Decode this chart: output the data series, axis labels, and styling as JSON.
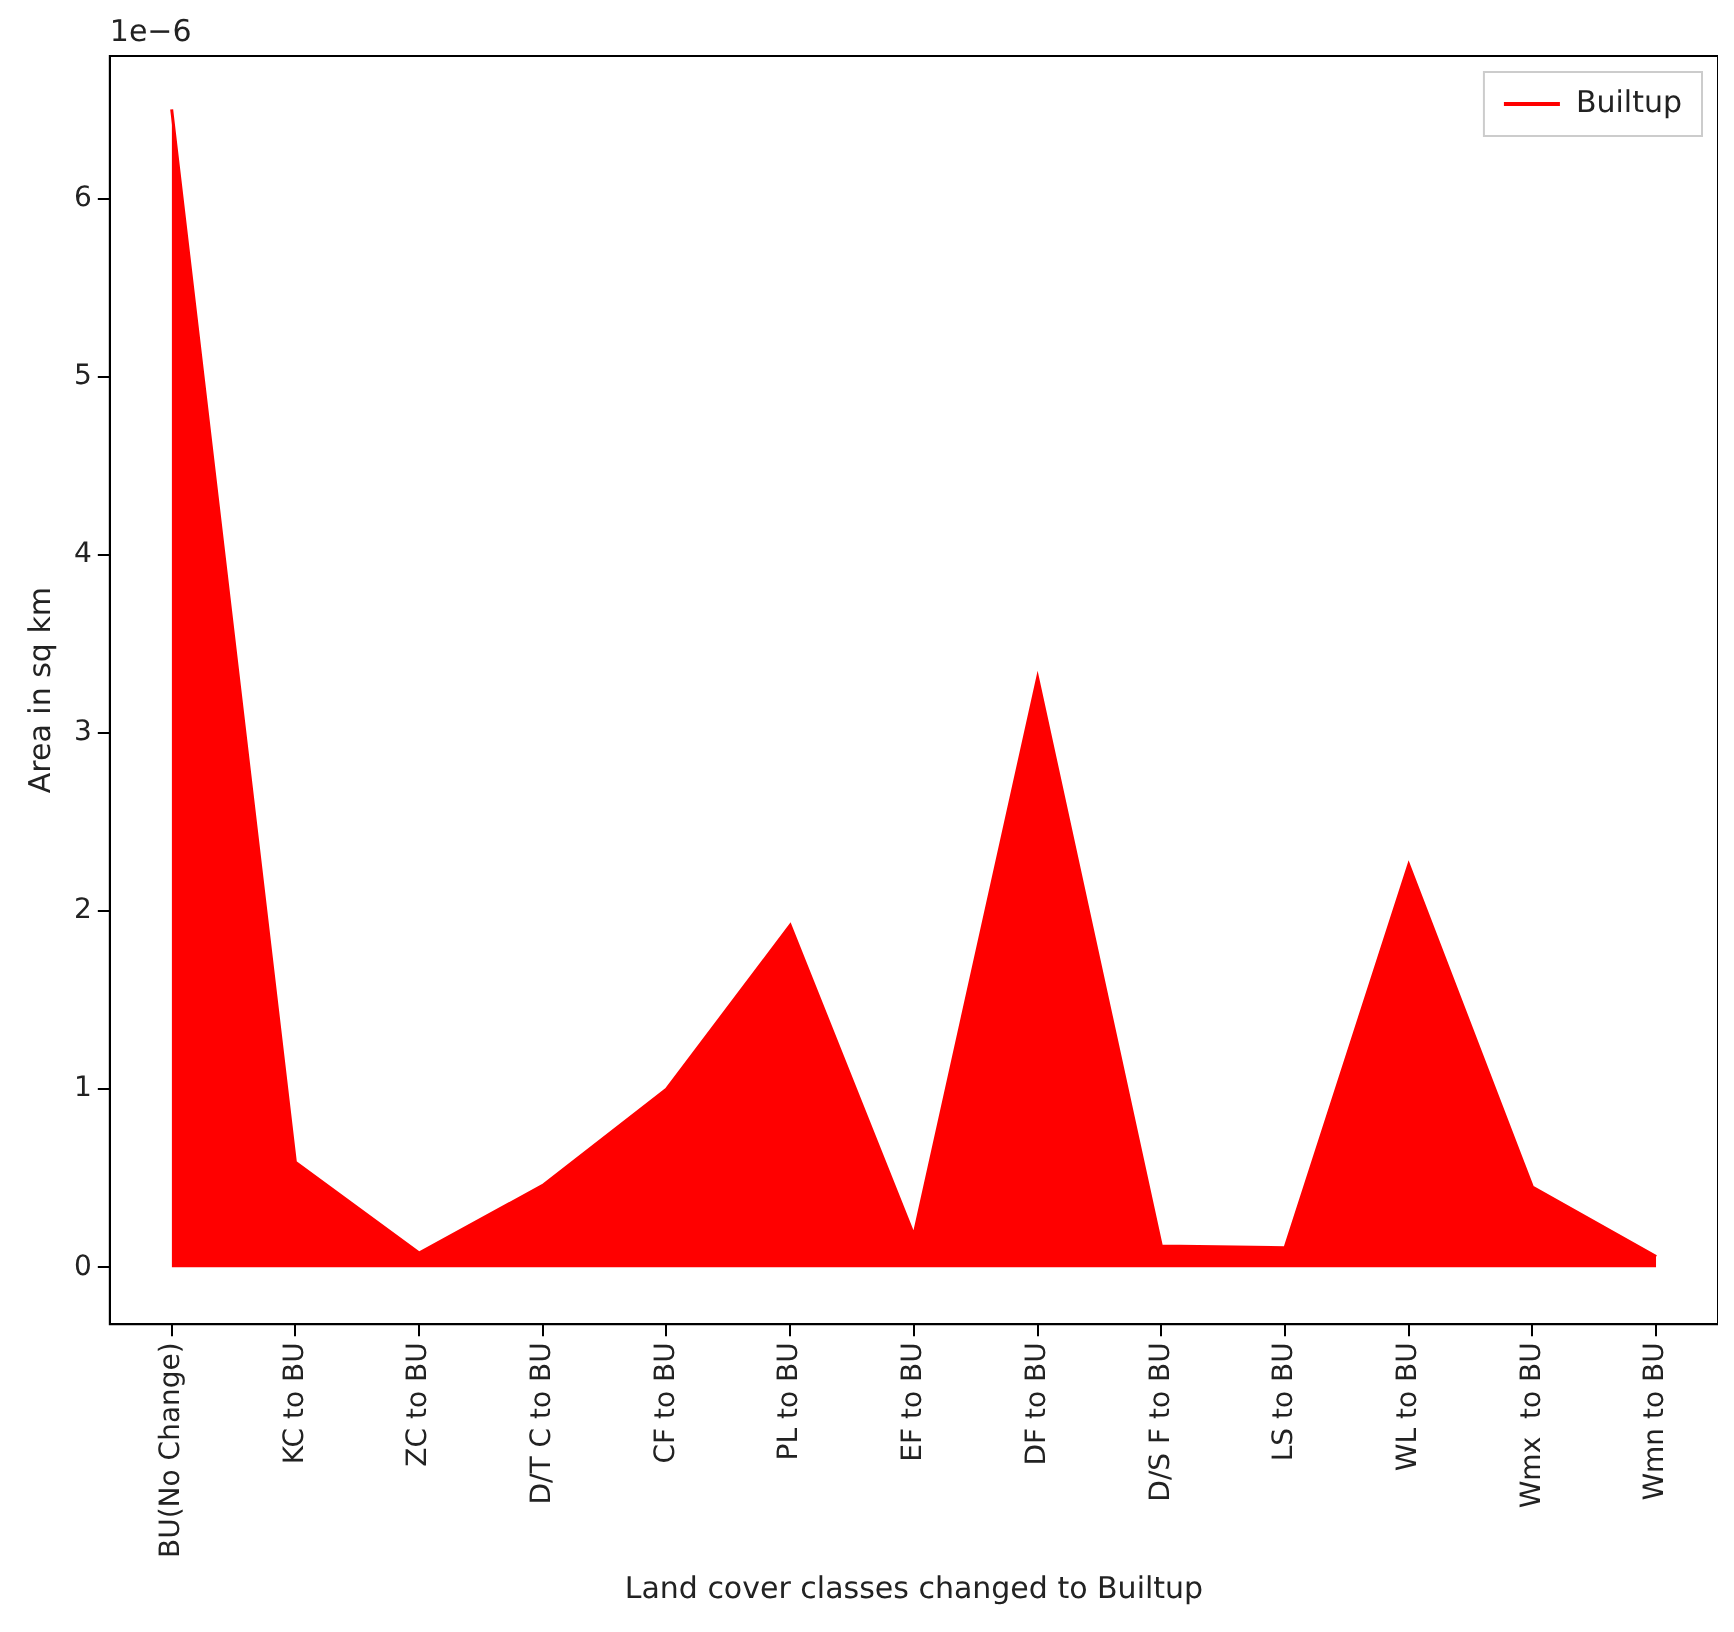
{
  "chart_data": {
    "type": "area",
    "categories": [
      "BU(No Change)",
      "KC to BU",
      "ZC to BU",
      "D/T C to BU",
      "CF to BU",
      "PL to BU",
      "EF to BU",
      "DF to BU",
      "D/S F to BU",
      "LS to BU",
      "WL to BU",
      "Wmx  to BU",
      "Wmn to BU"
    ],
    "series": [
      {
        "name": "Builtup",
        "color": "#ff0000",
        "values": [
          6.5,
          0.59,
          0.08,
          0.46,
          1.0,
          1.92,
          0.18,
          3.31,
          0.12,
          0.11,
          2.26,
          0.45,
          0.06
        ]
      }
    ],
    "xlabel": "Land cover classes changed to Builtup",
    "ylabel": "Area in sq km",
    "annotations": [
      "1e−6"
    ],
    "ylim": [
      -0.32,
      6.8
    ],
    "yticks": [
      0,
      1,
      2,
      3,
      4,
      5,
      6
    ],
    "legend": "top right",
    "grid": false
  }
}
